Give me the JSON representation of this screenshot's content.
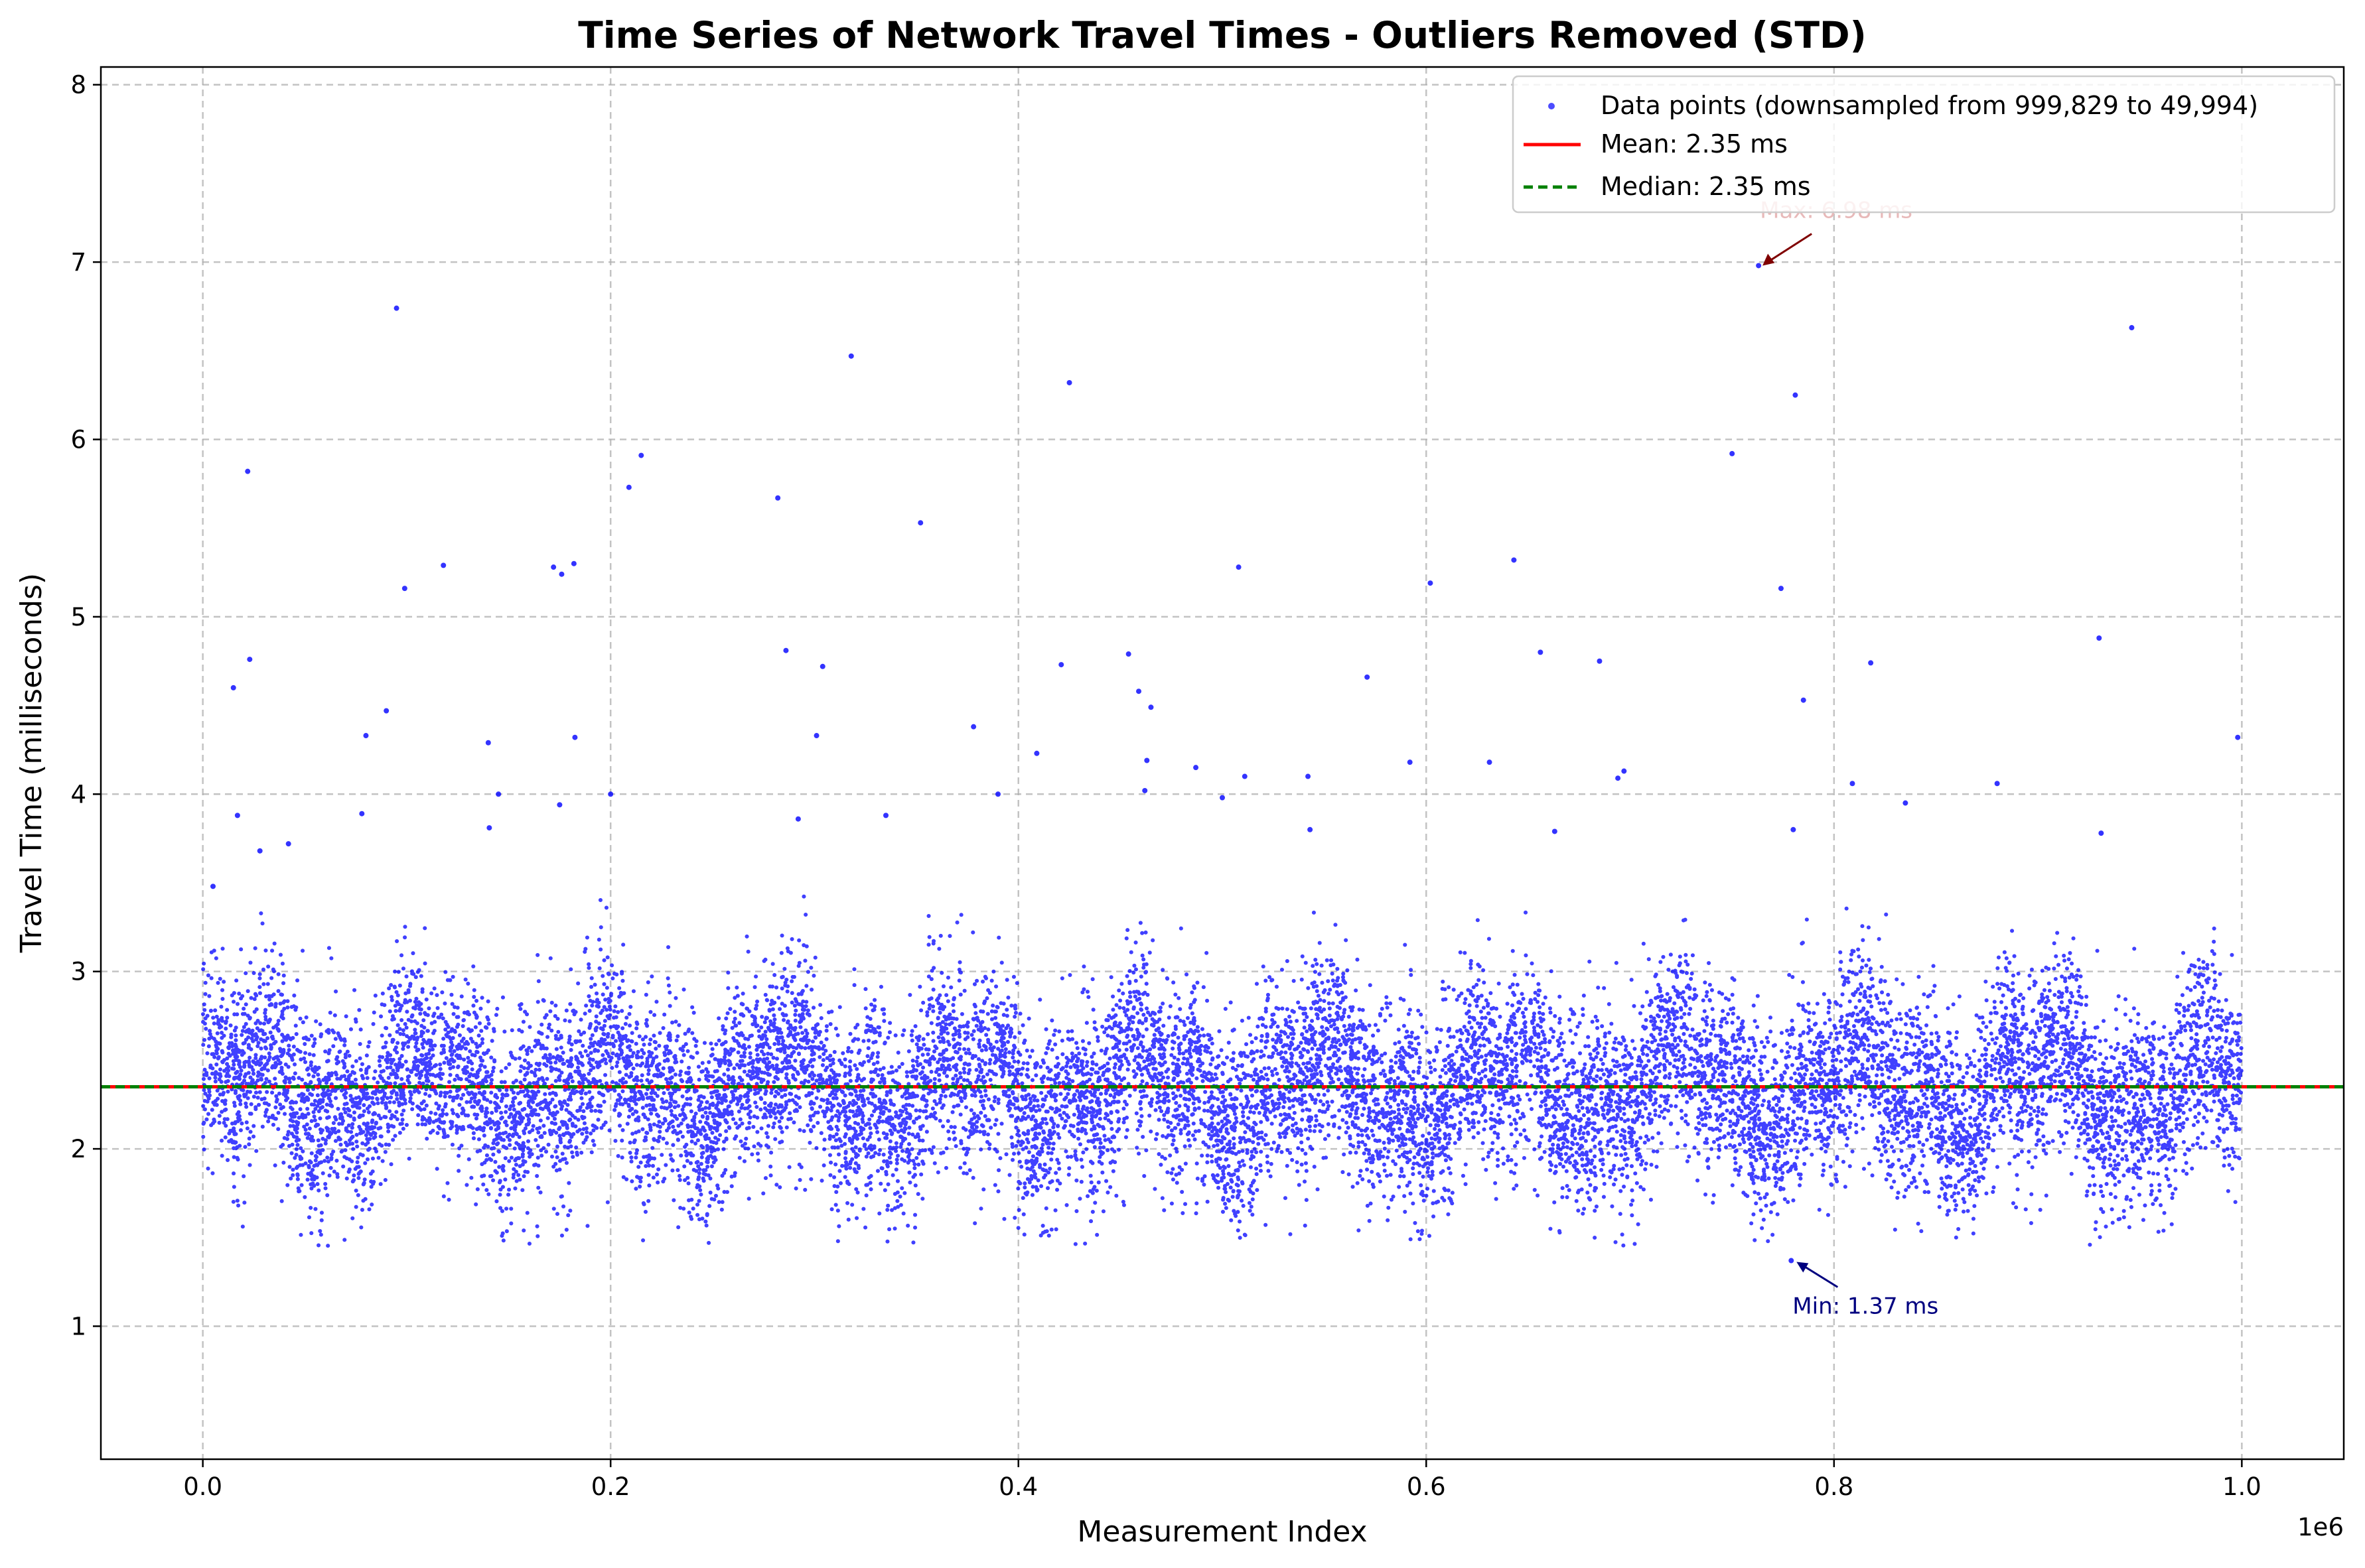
{
  "chart_data": {
    "type": "scatter",
    "title": "Time Series of Network Travel Times - Outliers Removed (STD)",
    "xlabel": "Measurement Index",
    "ylabel": "Travel Time (milliseconds)",
    "x_offset_label": "1e6",
    "xlim": [
      -50000,
      1050000
    ],
    "ylim": [
      0.25,
      8.1
    ],
    "x_ticks": [
      0,
      200000,
      400000,
      600000,
      800000,
      1000000
    ],
    "x_tick_labels": [
      "0.0",
      "0.2",
      "0.4",
      "0.6",
      "0.8",
      "1.0"
    ],
    "y_ticks": [
      1,
      2,
      3,
      4,
      5,
      6,
      7,
      8
    ],
    "y_tick_labels": [
      "1",
      "2",
      "3",
      "4",
      "5",
      "6",
      "7",
      "8"
    ],
    "grid": true,
    "legend_position": "top-right",
    "series": [
      {
        "name": "Data points (downsampled from 999,829 to 49,994)",
        "kind": "scatter",
        "color": "#0000ff",
        "bulk_band": {
          "x_range": [
            0,
            999829
          ],
          "y_center": 2.35,
          "typical_range": [
            1.6,
            3.2
          ]
        },
        "outliers": [
          {
            "x": 5000,
            "y": 3.48
          },
          {
            "x": 15000,
            "y": 4.6
          },
          {
            "x": 17000,
            "y": 3.88
          },
          {
            "x": 22000,
            "y": 5.82
          },
          {
            "x": 23000,
            "y": 4.76
          },
          {
            "x": 28000,
            "y": 3.68
          },
          {
            "x": 42000,
            "y": 3.72
          },
          {
            "x": 78000,
            "y": 3.89
          },
          {
            "x": 80000,
            "y": 4.33
          },
          {
            "x": 90000,
            "y": 4.47
          },
          {
            "x": 95000,
            "y": 6.74
          },
          {
            "x": 99000,
            "y": 5.16
          },
          {
            "x": 118000,
            "y": 5.29
          },
          {
            "x": 140000,
            "y": 4.29
          },
          {
            "x": 140500,
            "y": 3.81
          },
          {
            "x": 145000,
            "y": 4.0
          },
          {
            "x": 172000,
            "y": 5.28
          },
          {
            "x": 175000,
            "y": 3.94
          },
          {
            "x": 176000,
            "y": 5.24
          },
          {
            "x": 182000,
            "y": 5.3
          },
          {
            "x": 182500,
            "y": 4.32
          },
          {
            "x": 200000,
            "y": 4.0
          },
          {
            "x": 209000,
            "y": 5.73
          },
          {
            "x": 215000,
            "y": 5.91
          },
          {
            "x": 282000,
            "y": 5.67
          },
          {
            "x": 286000,
            "y": 4.81
          },
          {
            "x": 292000,
            "y": 3.86
          },
          {
            "x": 301000,
            "y": 4.33
          },
          {
            "x": 304000,
            "y": 4.72
          },
          {
            "x": 318000,
            "y": 6.47
          },
          {
            "x": 335000,
            "y": 3.88
          },
          {
            "x": 352000,
            "y": 5.53
          },
          {
            "x": 378000,
            "y": 4.38
          },
          {
            "x": 390000,
            "y": 4.0
          },
          {
            "x": 409000,
            "y": 4.23
          },
          {
            "x": 421000,
            "y": 4.73
          },
          {
            "x": 425000,
            "y": 6.32
          },
          {
            "x": 454000,
            "y": 4.79
          },
          {
            "x": 459000,
            "y": 4.58
          },
          {
            "x": 462000,
            "y": 4.02
          },
          {
            "x": 463000,
            "y": 4.19
          },
          {
            "x": 465000,
            "y": 4.49
          },
          {
            "x": 487000,
            "y": 4.15
          },
          {
            "x": 500000,
            "y": 3.98
          },
          {
            "x": 508000,
            "y": 5.28
          },
          {
            "x": 511000,
            "y": 4.1
          },
          {
            "x": 542000,
            "y": 4.1
          },
          {
            "x": 543000,
            "y": 3.8
          },
          {
            "x": 571000,
            "y": 4.66
          },
          {
            "x": 592000,
            "y": 4.18
          },
          {
            "x": 602000,
            "y": 5.19
          },
          {
            "x": 631000,
            "y": 4.18
          },
          {
            "x": 643000,
            "y": 5.32
          },
          {
            "x": 656000,
            "y": 4.8
          },
          {
            "x": 663000,
            "y": 3.79
          },
          {
            "x": 685000,
            "y": 4.75
          },
          {
            "x": 694000,
            "y": 4.09
          },
          {
            "x": 697000,
            "y": 4.13
          },
          {
            "x": 750000,
            "y": 5.92
          },
          {
            "x": 763000,
            "y": 6.98
          },
          {
            "x": 774000,
            "y": 5.16
          },
          {
            "x": 780000,
            "y": 3.8
          },
          {
            "x": 781000,
            "y": 6.25
          },
          {
            "x": 785000,
            "y": 4.53
          },
          {
            "x": 809000,
            "y": 4.06
          },
          {
            "x": 818000,
            "y": 4.74
          },
          {
            "x": 835000,
            "y": 3.95
          },
          {
            "x": 880000,
            "y": 4.06
          },
          {
            "x": 930000,
            "y": 4.88
          },
          {
            "x": 931000,
            "y": 3.78
          },
          {
            "x": 946000,
            "y": 6.63
          },
          {
            "x": 998000,
            "y": 4.32
          },
          {
            "x": 779000,
            "y": 1.37
          }
        ]
      },
      {
        "name": "Mean: 2.35 ms",
        "kind": "hline",
        "y": 2.35,
        "color": "#ff0000",
        "style": "solid"
      },
      {
        "name": "Median: 2.35 ms",
        "kind": "hline",
        "y": 2.35,
        "color": "#008000",
        "style": "dashed"
      }
    ],
    "annotations": [
      {
        "text": "Max: 6.98 ms",
        "x": 763000,
        "y": 6.98,
        "color": "#800000"
      },
      {
        "text": "Min: 1.37 ms",
        "x": 779000,
        "y": 1.37,
        "color": "#00007f"
      }
    ]
  }
}
